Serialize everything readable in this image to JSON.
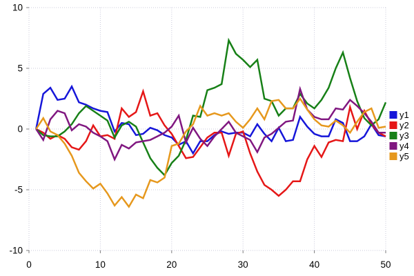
{
  "chart_data": {
    "type": "line",
    "title": "",
    "xlabel": "",
    "ylabel": "",
    "xlim": [
      0,
      50
    ],
    "ylim": [
      -10,
      10
    ],
    "x_ticks": [
      0,
      10,
      20,
      30,
      40,
      50
    ],
    "y_ticks": [
      -10,
      -5,
      0,
      5,
      10
    ],
    "grid": "dotted",
    "grid_color": "#c9c9da",
    "tick_color": "#7f7f7f",
    "background": "#ffffff",
    "legend_position": "outside-right",
    "line_width": 2.5,
    "x": [
      1,
      2,
      3,
      4,
      5,
      6,
      7,
      8,
      9,
      10,
      11,
      12,
      13,
      14,
      15,
      16,
      17,
      18,
      19,
      20,
      21,
      22,
      23,
      24,
      25,
      26,
      27,
      28,
      29,
      30,
      31,
      32,
      33,
      34,
      35,
      36,
      37,
      38,
      39,
      40,
      41,
      42,
      43,
      44,
      45,
      46,
      47,
      48,
      49,
      50
    ],
    "series": [
      {
        "name": "y1",
        "color": "#1616d9",
        "values": [
          0,
          2.9,
          3.4,
          2.4,
          2.5,
          3.5,
          2.2,
          2.0,
          1.7,
          1.5,
          1.4,
          -0.2,
          0.5,
          0.4,
          -0.5,
          -0.4,
          0.1,
          -0.1,
          -0.5,
          -0.7,
          -1.3,
          -1.0,
          -2.0,
          -1.0,
          -1.0,
          -0.5,
          -0.2,
          -0.4,
          -0.3,
          -0.3,
          -0.6,
          0.4,
          -0.4,
          -1.0,
          0.1,
          -1.0,
          -0.9,
          1.0,
          0.2,
          -0.4,
          -0.6,
          -0.6,
          0.8,
          0.5,
          -1.0,
          -1.0,
          -0.6,
          0.4,
          -0.5,
          -0.6
        ]
      },
      {
        "name": "y2",
        "color": "#e51717",
        "values": [
          0,
          -0.3,
          -0.8,
          -0.5,
          -0.8,
          -1.5,
          -1.7,
          -1.0,
          0.3,
          -0.6,
          -0.5,
          -0.8,
          1.7,
          1.0,
          1.4,
          3.1,
          1.1,
          1.3,
          0.3,
          -0.4,
          -1.4,
          -2.4,
          -2.3,
          -1.5,
          -0.7,
          -0.3,
          -0.3,
          -2.2,
          -0.4,
          -0.2,
          -2.0,
          -3.5,
          -4.6,
          -5.0,
          -5.5,
          -5.0,
          -4.3,
          -4.3,
          -2.5,
          -1.4,
          -2.3,
          -1.1,
          -0.9,
          -1.0,
          1.8,
          0.0,
          1.5,
          0.4,
          -0.3,
          -0.6
        ]
      },
      {
        "name": "y3",
        "color": "#178017",
        "values": [
          0,
          -0.5,
          -0.6,
          -0.6,
          -0.2,
          0.4,
          1.3,
          1.9,
          1.5,
          1.1,
          0.7,
          -0.7,
          0.3,
          0.6,
          0.2,
          -1.1,
          -2.4,
          -3.2,
          -3.8,
          -2.8,
          -2.2,
          -0.9,
          1.1,
          1.0,
          3.2,
          3.4,
          3.7,
          7.3,
          6.2,
          5.7,
          5.1,
          5.7,
          2.5,
          2.3,
          1.1,
          1.7,
          1.7,
          2.9,
          2.1,
          1.7,
          2.4,
          3.4,
          5.0,
          6.3,
          4.2,
          2.3,
          0.9,
          0.3,
          0.8,
          2.2
        ]
      },
      {
        "name": "y4",
        "color": "#801780",
        "values": [
          0,
          -0.9,
          0.8,
          1.5,
          1.3,
          -0.1,
          0.4,
          0.2,
          -0.3,
          -0.6,
          -1.0,
          -2.5,
          -1.3,
          -1.6,
          -1.1,
          -1.0,
          -0.9,
          -0.6,
          -0.3,
          0.2,
          1.1,
          -1.1,
          0.1,
          -0.8,
          -1.4,
          -0.6,
          0.0,
          0.6,
          -0.3,
          -0.6,
          -0.9,
          -1.9,
          -0.7,
          -0.4,
          0.1,
          0.6,
          0.7,
          3.3,
          1.6,
          1.0,
          0.8,
          0.8,
          1.7,
          1.6,
          2.4,
          1.9,
          1.3,
          0.6,
          -0.3,
          -0.3
        ]
      },
      {
        "name": "y5",
        "color": "#e6981d",
        "values": [
          0,
          0.9,
          -0.2,
          -0.5,
          -1.2,
          -2.2,
          -3.6,
          -4.3,
          -4.9,
          -4.5,
          -5.3,
          -6.3,
          -5.6,
          -6.4,
          -5.4,
          -5.7,
          -4.2,
          -4.4,
          -4.0,
          -1.4,
          -1.2,
          -0.2,
          0.4,
          1.9,
          1.1,
          1.3,
          1.1,
          1.3,
          0.6,
          0.1,
          0.8,
          1.7,
          0.8,
          2.3,
          2.4,
          1.7,
          1.7,
          2.5,
          1.6,
          0.8,
          0.3,
          0.2,
          0.7,
          0.3,
          -0.3,
          0.6,
          1.4,
          1.7,
          0.1,
          0.2
        ]
      }
    ],
    "legend_labels": [
      "y1",
      "y2",
      "y3",
      "y4",
      "y5"
    ]
  }
}
